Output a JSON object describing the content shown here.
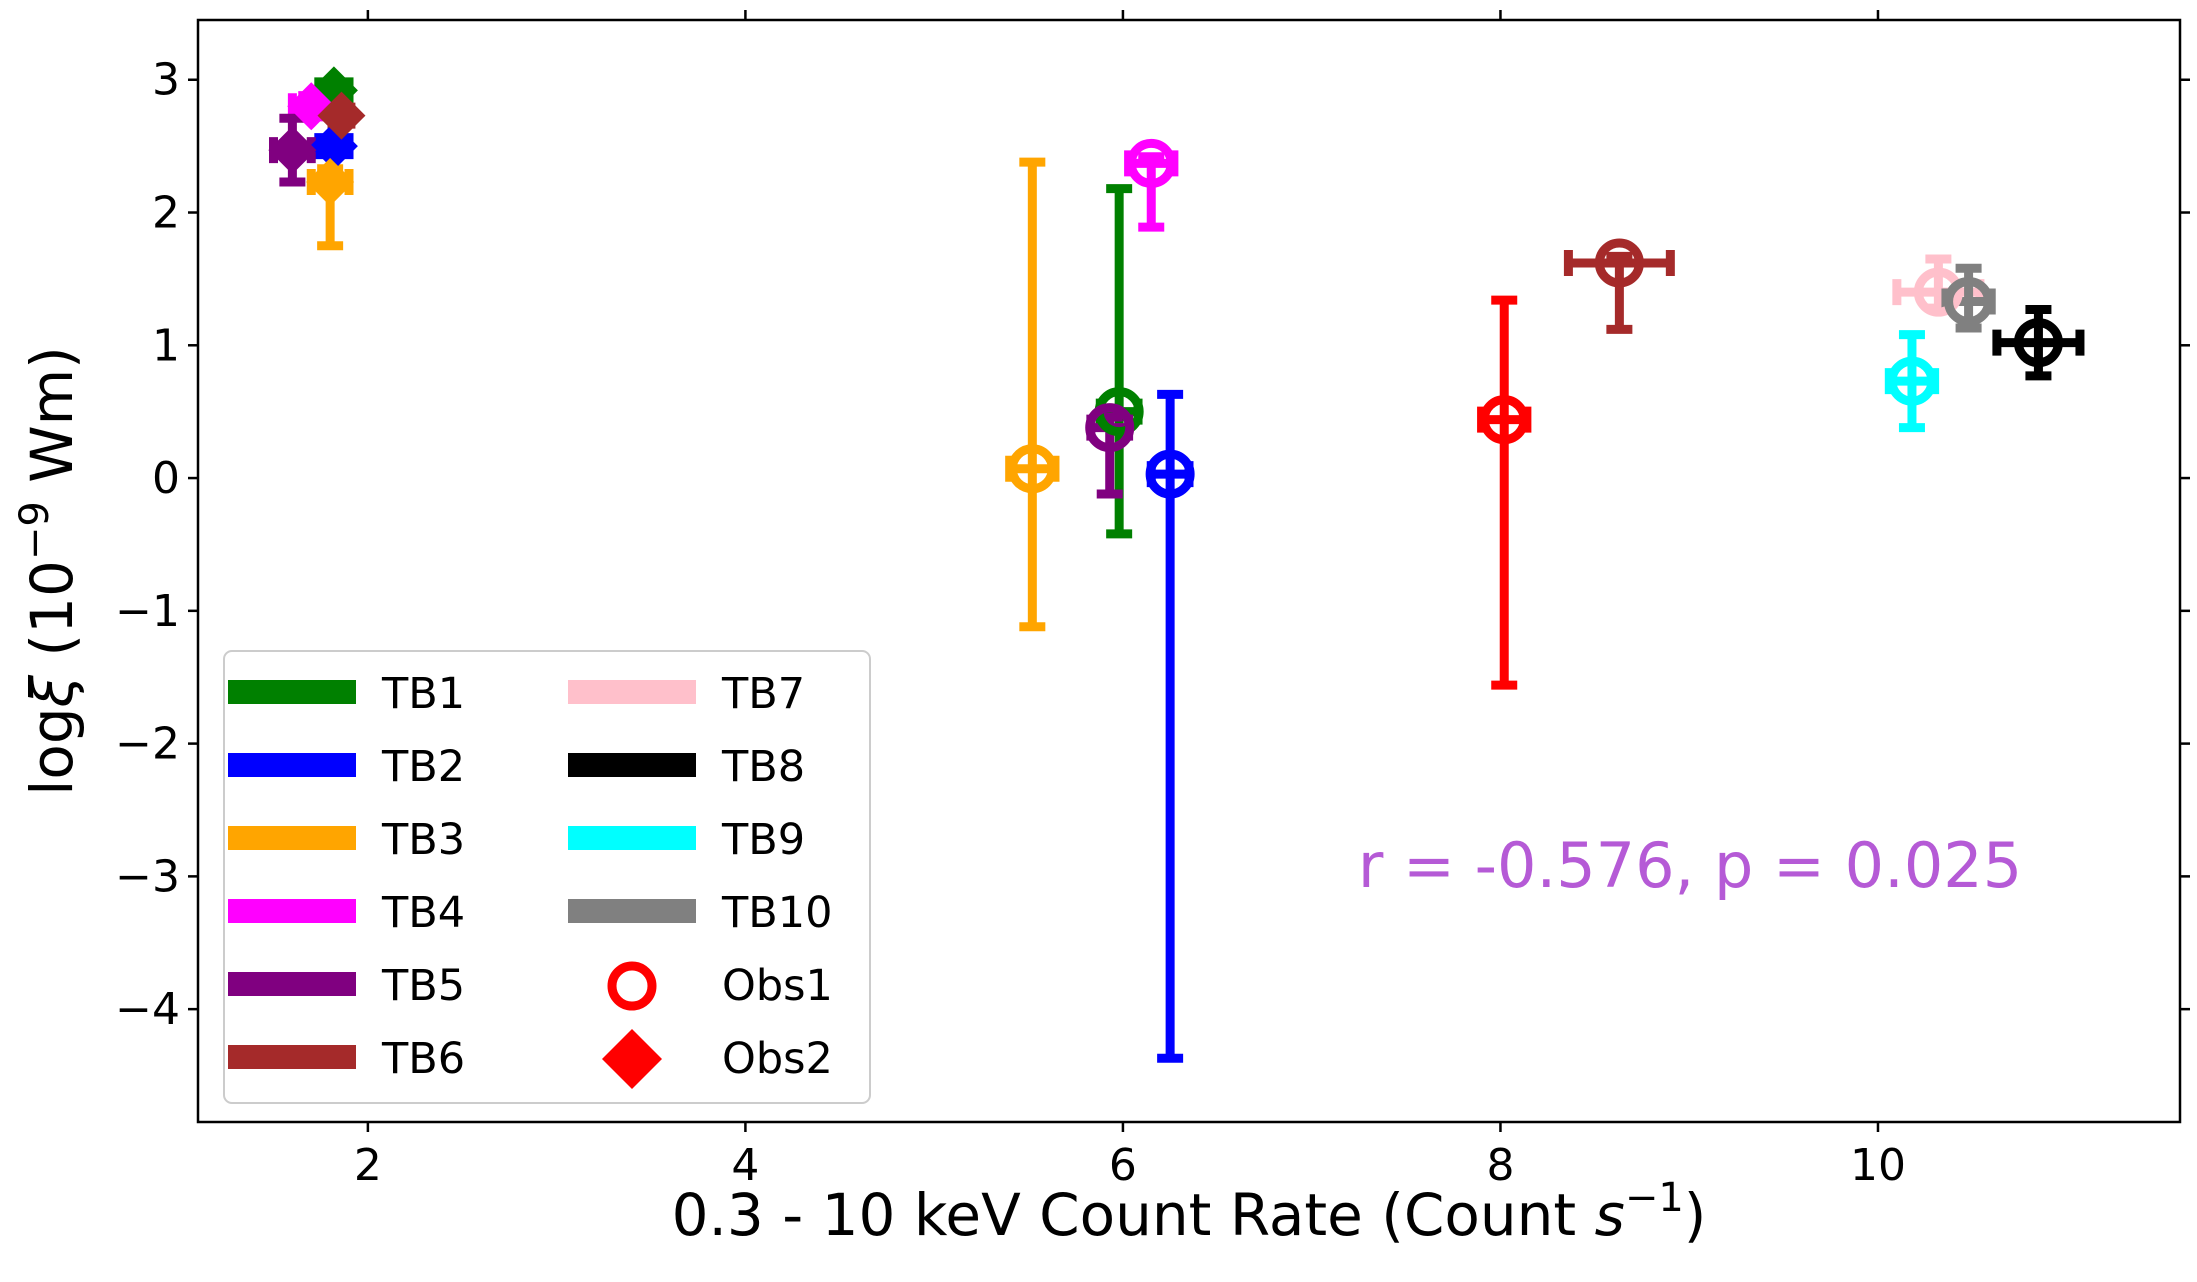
{
  "chart_data": {
    "type": "scatter",
    "xlabel": "0.3 - 10 keV Count Rate (Count s⁻¹)",
    "ylabel": "logξ (10⁻⁹ Wm)",
    "xlim": [
      1.1,
      11.6
    ],
    "ylim": [
      -4.85,
      3.45
    ],
    "x_ticks": [
      2,
      4,
      6,
      8,
      10
    ],
    "y_ticks": [
      3,
      2,
      1,
      0,
      -1,
      -2,
      -3,
      -4
    ],
    "legend_location": "lower-left",
    "annotation": {
      "text": "r = -0.576, p = 0.025",
      "color": "#b55ad6"
    },
    "markers": {
      "obs1": "Obs1",
      "obs2": "Obs2"
    },
    "series": [
      {
        "name": "TB1",
        "color": "#008000",
        "obs1": {
          "x": 5.98,
          "y": 0.5,
          "y_err_low": 0.92,
          "y_err_high": 1.68,
          "x_err": 0.1
        },
        "obs2": {
          "x": 1.82,
          "y": 2.92,
          "y_err_low": 0.06,
          "y_err_high": 0.06,
          "x_err": 0.08
        }
      },
      {
        "name": "TB2",
        "color": "#0000ff",
        "obs1": {
          "x": 6.25,
          "y": 0.03,
          "y_err_low": 4.4,
          "y_err_high": 0.6,
          "x_err": 0.1
        },
        "obs2": {
          "x": 1.82,
          "y": 2.5,
          "y_err_low": 0.06,
          "y_err_high": 0.06,
          "x_err": 0.08
        }
      },
      {
        "name": "TB3",
        "color": "#ffa500",
        "obs1": {
          "x": 5.52,
          "y": 0.07,
          "y_err_low": 1.19,
          "y_err_high": 2.31,
          "x_err": 0.12
        },
        "obs2": {
          "x": 1.8,
          "y": 2.23,
          "y_err_low": 0.48,
          "y_err_high": 0.1,
          "x_err": 0.1
        }
      },
      {
        "name": "TB4",
        "color": "#ff00ff",
        "obs1": {
          "x": 6.15,
          "y": 2.37,
          "y_err_low": 0.48,
          "y_err_high": 0.05,
          "x_err": 0.12
        },
        "obs2": {
          "x": 1.7,
          "y": 2.8,
          "y_err_low": 0.08,
          "y_err_high": 0.08,
          "x_err": 0.1
        }
      },
      {
        "name": "TB5",
        "color": "#800080",
        "obs1": {
          "x": 5.93,
          "y": 0.38,
          "y_err_low": 0.5,
          "y_err_high": 0.08,
          "x_err": 0.1
        },
        "obs2": {
          "x": 1.6,
          "y": 2.47,
          "y_err_low": 0.24,
          "y_err_high": 0.24,
          "x_err": 0.1
        }
      },
      {
        "name": "TB6",
        "color": "#a52a2a",
        "obs1": {
          "x": 8.63,
          "y": 1.62,
          "y_err_low": 0.5,
          "y_err_high": 0.05,
          "x_err": 0.27
        },
        "obs2": {
          "x": 1.86,
          "y": 2.73,
          "y_err_low": 0.05,
          "y_err_high": 0.05,
          "x_err": 0.05
        }
      },
      {
        "name": "TB7",
        "color": "#ffc0cb",
        "obs1": {
          "x": 10.32,
          "y": 1.4,
          "y_err_low": 0.12,
          "y_err_high": 0.25,
          "x_err": 0.22
        }
      },
      {
        "name": "TB8",
        "color": "#000000",
        "obs1": {
          "x": 10.85,
          "y": 1.02,
          "y_err_low": 0.25,
          "y_err_high": 0.25,
          "x_err": 0.22
        }
      },
      {
        "name": "TB9",
        "color": "#00ffff",
        "obs1": {
          "x": 10.18,
          "y": 0.73,
          "y_err_low": 0.35,
          "y_err_high": 0.35,
          "x_err": 0.12
        }
      },
      {
        "name": "TB10",
        "color": "#808080",
        "obs1": {
          "x": 10.48,
          "y": 1.33,
          "y_err_low": 0.2,
          "y_err_high": 0.25,
          "x_err": 0.12
        }
      },
      {
        "name": "",
        "color": "#ff0000",
        "obs1": {
          "x": 8.02,
          "y": 0.44,
          "y_err_low": 2.0,
          "y_err_high": 0.9,
          "x_err": 0.12
        }
      }
    ]
  }
}
